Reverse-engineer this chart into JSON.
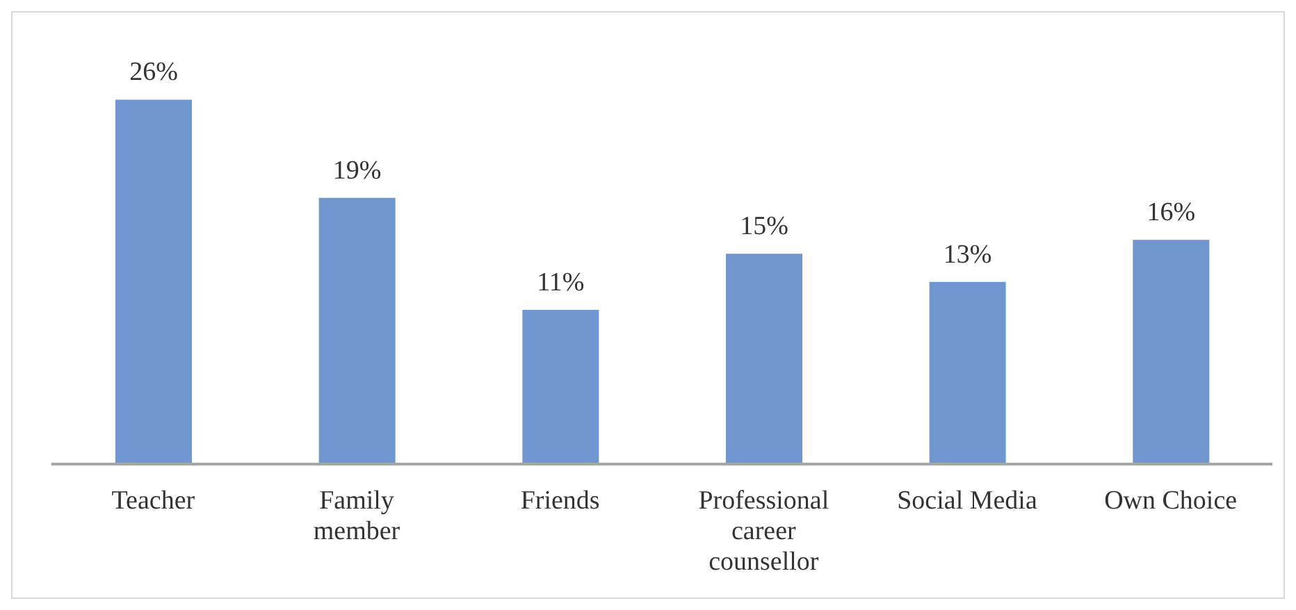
{
  "chart_data": {
    "type": "bar",
    "categories": [
      "Teacher",
      "Family member",
      "Friends",
      "Professional career counsellor",
      "Social Media",
      "Own Choice"
    ],
    "values": [
      26,
      19,
      11,
      15,
      13,
      16
    ],
    "color": "#6f96cf",
    "data_labels": true,
    "value_labels": [
      "26%",
      "19%",
      "11%",
      "15%",
      "13%",
      "16%"
    ]
  }
}
